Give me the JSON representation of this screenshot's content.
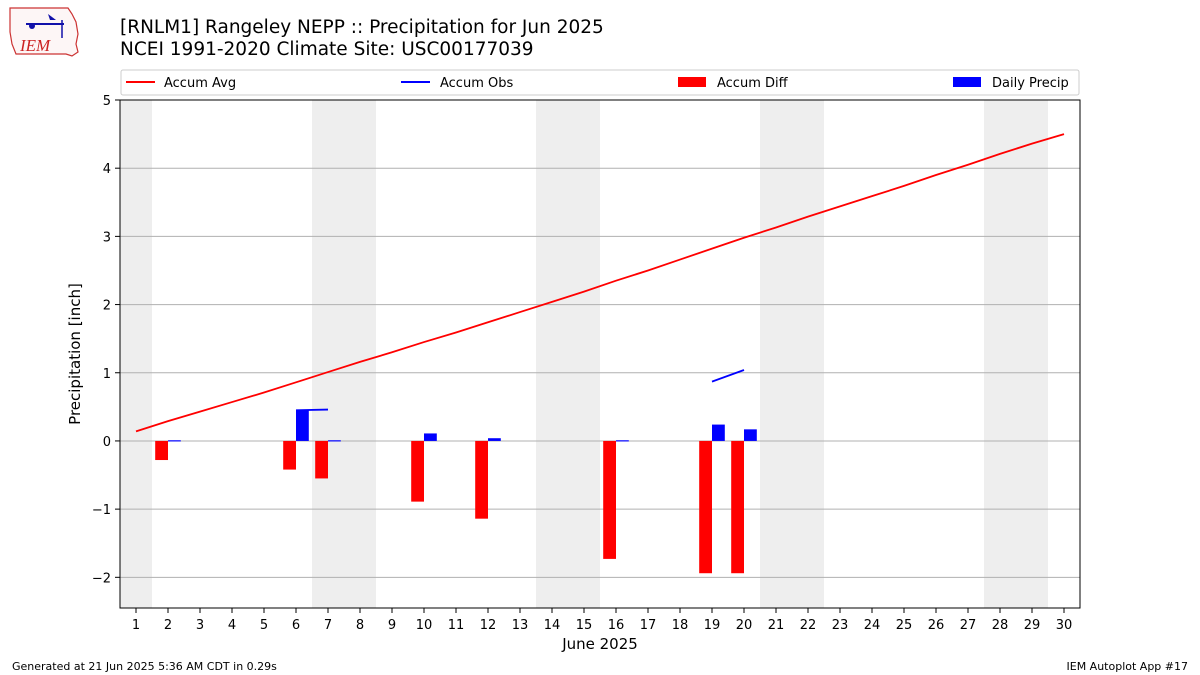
{
  "header": {
    "title_line1": "[RNLM1] Rangeley NEPP :: Precipitation for Jun 2025",
    "title_line2": "NCEI 1991-2020 Climate Site: USC00177039"
  },
  "logo": {
    "text": "IEM"
  },
  "footer": {
    "generated": "Generated at 21 Jun 2025 5:36 AM CDT in 0.29s",
    "app": "IEM Autoplot App #17"
  },
  "chart_data": {
    "type": "bar",
    "xlabel": "June 2025",
    "ylabel": "Precipitation [inch]",
    "xlim": [
      0.5,
      30.5
    ],
    "ylim": [
      -2.45,
      5.0
    ],
    "yticks": [
      -2,
      -1,
      0,
      1,
      2,
      3,
      4,
      5
    ],
    "ytick_labels": [
      "−2",
      "−1",
      "0",
      "1",
      "2",
      "3",
      "4",
      "5"
    ],
    "xticks": [
      1,
      2,
      3,
      4,
      5,
      6,
      7,
      8,
      9,
      10,
      11,
      12,
      13,
      14,
      15,
      16,
      17,
      18,
      19,
      20,
      21,
      22,
      23,
      24,
      25,
      26,
      27,
      28,
      29,
      30
    ],
    "grid": "horizontal",
    "weekend_shading": [
      [
        0.5,
        1.5
      ],
      [
        6.5,
        8.5
      ],
      [
        13.5,
        15.5
      ],
      [
        20.5,
        22.5
      ],
      [
        27.5,
        29.5
      ]
    ],
    "legend": {
      "placement": "top",
      "entries": [
        "Accum Avg",
        "Accum Obs",
        "Accum Diff",
        "Daily Precip"
      ]
    },
    "colors": {
      "avg": "#ff0000",
      "obs": "#0000ff",
      "diff": "#ff0000",
      "daily": "#0000ff",
      "weekend": "#eeeeee",
      "grid": "#b0b0b0"
    },
    "accum_avg": {
      "x": [
        1,
        2,
        3,
        4,
        5,
        6,
        7,
        8,
        9,
        10,
        11,
        12,
        13,
        14,
        15,
        16,
        17,
        18,
        19,
        20,
        21,
        22,
        23,
        24,
        25,
        26,
        27,
        28,
        29,
        30
      ],
      "y": [
        0.14,
        0.29,
        0.43,
        0.57,
        0.71,
        0.86,
        1.01,
        1.16,
        1.3,
        1.45,
        1.59,
        1.74,
        1.89,
        2.04,
        2.19,
        2.35,
        2.5,
        2.66,
        2.82,
        2.98,
        3.13,
        3.29,
        3.44,
        3.59,
        3.74,
        3.9,
        4.05,
        4.21,
        4.36,
        4.5
      ]
    },
    "accum_obs": [
      {
        "x": [
          6,
          7
        ],
        "y": [
          0.45,
          0.46
        ]
      },
      {
        "x": [
          19,
          20
        ],
        "y": [
          0.87,
          1.04
        ]
      }
    ],
    "accum_diff": {
      "x": [
        2,
        6,
        7,
        10,
        12,
        16,
        19,
        20
      ],
      "y": [
        -0.28,
        -0.42,
        -0.55,
        -0.89,
        -1.14,
        -1.73,
        -1.94,
        -1.94
      ]
    },
    "daily_precip": {
      "x": [
        2,
        6,
        7,
        10,
        12,
        16,
        19,
        20
      ],
      "y": [
        0.01,
        0.45,
        0.01,
        0.11,
        0.04,
        0.01,
        0.24,
        0.17
      ]
    }
  }
}
